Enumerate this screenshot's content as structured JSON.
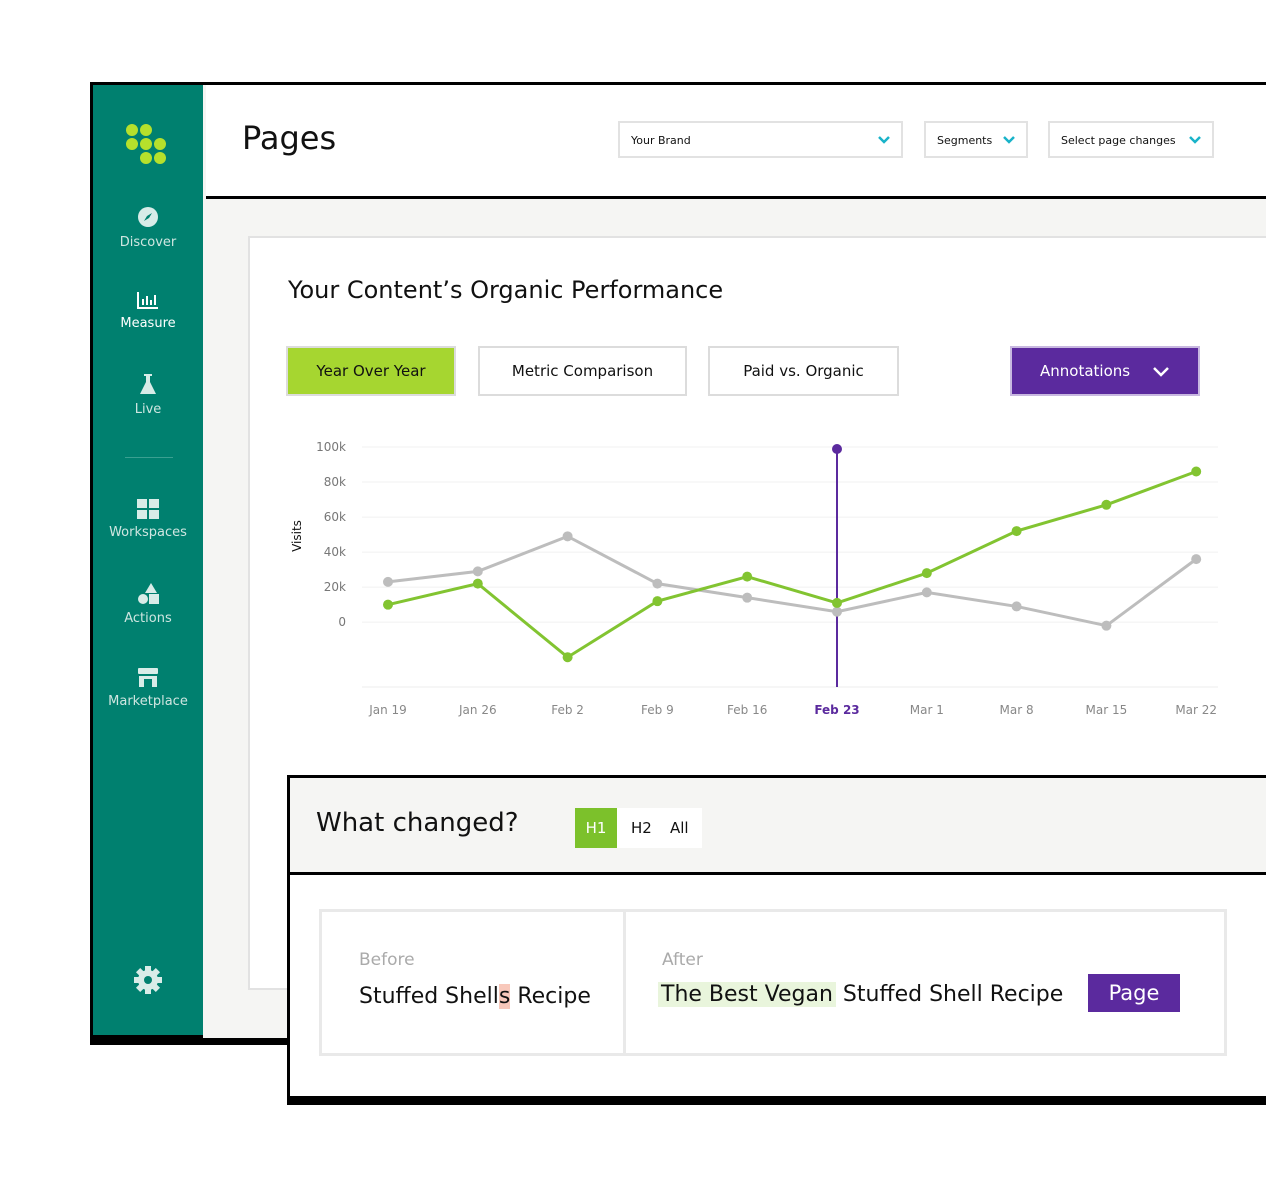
{
  "sidebar": {
    "nav": [
      "Discover",
      "Measure",
      "Live",
      "Workspaces",
      "Actions",
      "Marketplace"
    ]
  },
  "header": {
    "title": "Pages",
    "dropdowns": [
      "Your Brand",
      "Segments",
      "Select page changes"
    ]
  },
  "panel": {
    "title": "Your Content’s Organic Performance",
    "tabs": [
      "Year Over Year",
      "Metric Comparison",
      "Paid vs. Organic"
    ],
    "annotations": "Annotations"
  },
  "chart_data": {
    "type": "line",
    "ylabel": "Visits",
    "categories": [
      "Jan 19",
      "Jan 26",
      "Feb 2",
      "Feb 9",
      "Feb 16",
      "Feb 23",
      "Mar 1",
      "Mar 8",
      "Mar 15",
      "Mar 22"
    ],
    "series": [
      {
        "color": "#bdbdbd",
        "values": [
          23000,
          29000,
          49000,
          22000,
          14000,
          6000,
          17000,
          9000,
          -2000,
          36000
        ]
      },
      {
        "color": "#82c431",
        "values": [
          10000,
          22000,
          -20000,
          12000,
          26000,
          11000,
          28000,
          52000,
          67000,
          86000
        ]
      }
    ],
    "ylim": [
      -37000,
      100000
    ],
    "yticks": [
      0,
      {
        "value": 20000,
        "label": "20k"
      },
      {
        "value": 40000,
        "label": "40k"
      },
      {
        "value": 60000,
        "label": "60k"
      },
      {
        "value": 80000,
        "label": "80k"
      },
      {
        "value": 100000,
        "label": "100k"
      }
    ],
    "grid": true,
    "annotation_index": 5,
    "annotation_color": "#5b2a9e"
  },
  "changes": {
    "title": "What changed?",
    "tabs": [
      "H1",
      "H2",
      "All"
    ],
    "before": {
      "label": "Before",
      "parts": [
        "Stuffed Shell",
        "s",
        " Recipe"
      ]
    },
    "after": {
      "label": "After",
      "parts": [
        "The Best Vegan",
        " Stuffed Shell Recipe"
      ]
    },
    "button": "Page"
  }
}
